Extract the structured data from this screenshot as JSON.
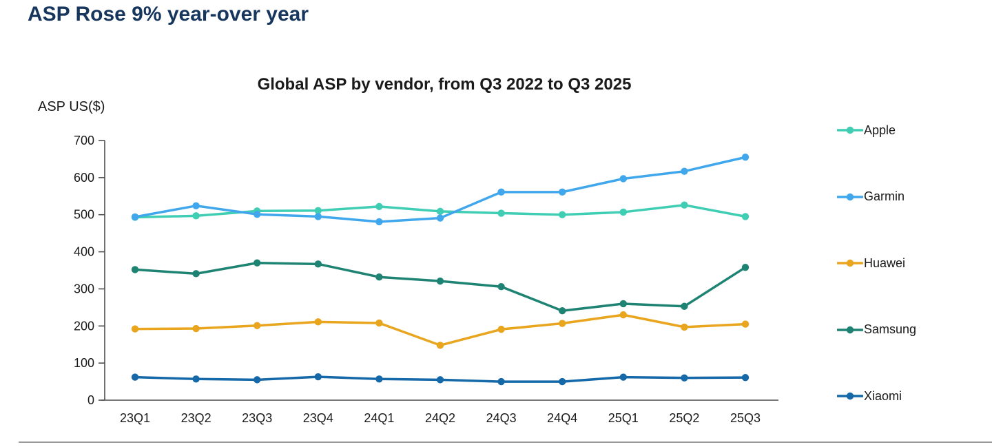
{
  "page": {
    "title": "ASP Rose 9% year-over year"
  },
  "colors": {
    "title_navy": "#17365D",
    "axis": "#4D4D4D",
    "tick_text": "#1a1a1a",
    "divider": "#9B9B9B"
  },
  "chart_data": {
    "type": "line",
    "title": "Global ASP by vendor, from Q3 2022 to Q3 2025",
    "ylabel": "ASP US($)",
    "xlabel": "",
    "ylim": [
      0,
      700
    ],
    "yticks": [
      0,
      100,
      200,
      300,
      400,
      500,
      600,
      700
    ],
    "grid": false,
    "legend_position": "right",
    "categories": [
      "23Q1",
      "23Q2",
      "23Q3",
      "23Q4",
      "24Q1",
      "24Q2",
      "24Q3",
      "24Q4",
      "25Q1",
      "25Q2",
      "25Q3"
    ],
    "series": [
      {
        "name": "Apple",
        "color": "#3FCDB4",
        "values": [
          493,
          497,
          510,
          511,
          522,
          509,
          504,
          500,
          507,
          526,
          495
        ]
      },
      {
        "name": "Garmin",
        "color": "#41A7EC",
        "values": [
          494,
          524,
          501,
          495,
          481,
          491,
          561,
          561,
          597,
          617,
          655
        ]
      },
      {
        "name": "Huawei",
        "color": "#E8A51D",
        "values": [
          192,
          193,
          201,
          211,
          208,
          148,
          191,
          207,
          230,
          197,
          205
        ]
      },
      {
        "name": "Samsung",
        "color": "#1F8374",
        "values": [
          352,
          341,
          370,
          367,
          332,
          321,
          306,
          241,
          260,
          253,
          358
        ]
      },
      {
        "name": "Xiaomi",
        "color": "#1669A9",
        "values": [
          62,
          57,
          55,
          63,
          57,
          55,
          50,
          50,
          62,
          60,
          61
        ]
      }
    ]
  }
}
